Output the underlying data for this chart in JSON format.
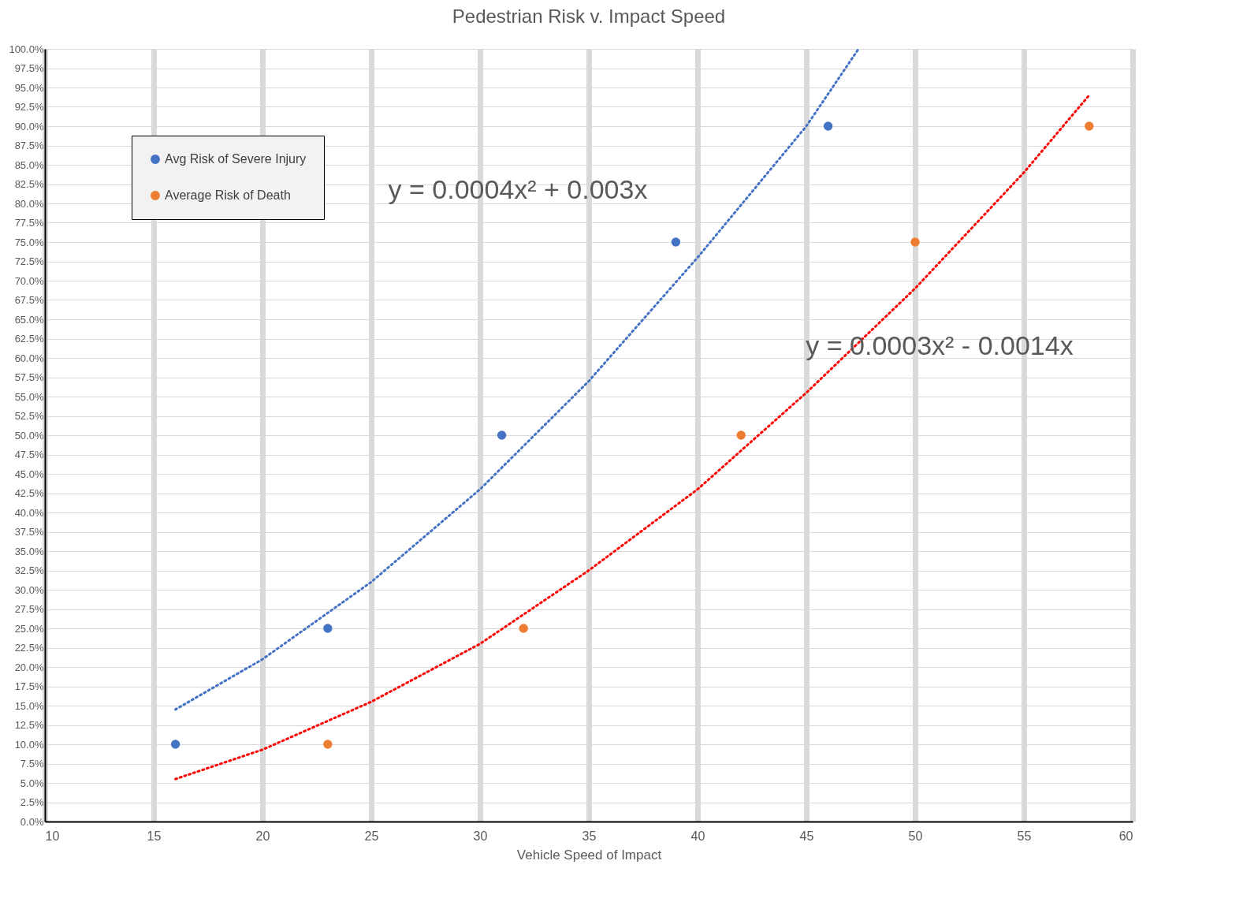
{
  "chart_data": {
    "type": "scatter",
    "title": "Pedestrian Risk v. Impact Speed",
    "xlabel": "Vehicle Speed of Impact",
    "xlim": [
      10,
      60
    ],
    "xticks": [
      10,
      15,
      20,
      25,
      30,
      35,
      40,
      45,
      50,
      55,
      60
    ],
    "ylim": [
      0,
      100
    ],
    "yticks": [
      {
        "value": 0,
        "label": "0.0%"
      },
      {
        "value": 2.5,
        "label": "2.5%"
      },
      {
        "value": 5,
        "label": "5.0%"
      },
      {
        "value": 7.5,
        "label": "7.5%"
      },
      {
        "value": 10,
        "label": "10.0%"
      },
      {
        "value": 12.5,
        "label": "12.5%"
      },
      {
        "value": 15,
        "label": "15.0%"
      },
      {
        "value": 17.5,
        "label": "17.5%"
      },
      {
        "value": 20,
        "label": "20.0%"
      },
      {
        "value": 22.5,
        "label": "22.5%"
      },
      {
        "value": 25,
        "label": "25.0%"
      },
      {
        "value": 27.5,
        "label": "27.5%"
      },
      {
        "value": 30,
        "label": "30.0%"
      },
      {
        "value": 32.5,
        "label": "32.5%"
      },
      {
        "value": 35,
        "label": "35.0%"
      },
      {
        "value": 37.5,
        "label": "37.5%"
      },
      {
        "value": 40,
        "label": "40.0%"
      },
      {
        "value": 42.5,
        "label": "42.5%"
      },
      {
        "value": 45,
        "label": "45.0%"
      },
      {
        "value": 47.5,
        "label": "47.5%"
      },
      {
        "value": 50,
        "label": "50.0%"
      },
      {
        "value": 52.5,
        "label": "52.5%"
      },
      {
        "value": 55,
        "label": "55.0%"
      },
      {
        "value": 57.5,
        "label": "57.5%"
      },
      {
        "value": 60,
        "label": "60.0%"
      },
      {
        "value": 62.5,
        "label": "62.5%"
      },
      {
        "value": 65,
        "label": "65.0%"
      },
      {
        "value": 67.5,
        "label": "67.5%"
      },
      {
        "value": 70,
        "label": "70.0%"
      },
      {
        "value": 72.5,
        "label": "72.5%"
      },
      {
        "value": 75,
        "label": "75.0%"
      },
      {
        "value": 77.5,
        "label": "77.5%"
      },
      {
        "value": 80,
        "label": "80.0%"
      },
      {
        "value": 82.5,
        "label": "82.5%"
      },
      {
        "value": 85,
        "label": "85.0%"
      },
      {
        "value": 87.5,
        "label": "87.5%"
      },
      {
        "value": 90,
        "label": "90.0%"
      },
      {
        "value": 92.5,
        "label": "92.5%"
      },
      {
        "value": 95,
        "label": "95.0%"
      },
      {
        "value": 97.5,
        "label": "97.5%"
      },
      {
        "value": 100,
        "label": "100.0%"
      }
    ],
    "grid": true,
    "legend": "top left",
    "series": [
      {
        "name": "Avg Risk of Severe Injury",
        "color": "#4472c4",
        "marker": "circle",
        "x": [
          16,
          23,
          31,
          39,
          46
        ],
        "values": [
          10,
          25,
          50,
          75,
          90
        ]
      },
      {
        "name": "Average Risk of Death",
        "color": "#ed7d31",
        "marker": "circle",
        "x": [
          23,
          32,
          42,
          50,
          58
        ],
        "values": [
          10,
          25,
          50,
          75,
          90
        ]
      },
      {
        "type": "line",
        "line_style": "dotted",
        "color": "#4472c4",
        "x": [
          16,
          20,
          25,
          30,
          35,
          40,
          45,
          47.4
        ],
        "values": [
          14.5,
          21,
          31,
          43,
          57,
          73,
          90,
          100
        ]
      },
      {
        "type": "line",
        "line_style": "dotted",
        "color": "#ff0000",
        "x": [
          16,
          20,
          25,
          30,
          35,
          40,
          45,
          50,
          55,
          58
        ],
        "values": [
          5.5,
          9.3,
          15.5,
          23,
          32.5,
          43,
          55.5,
          69,
          84,
          94
        ]
      }
    ],
    "annotations": [
      "y = 0.0004x² + 0.003x",
      "y = 0.0003x² - 0.0014x"
    ]
  }
}
